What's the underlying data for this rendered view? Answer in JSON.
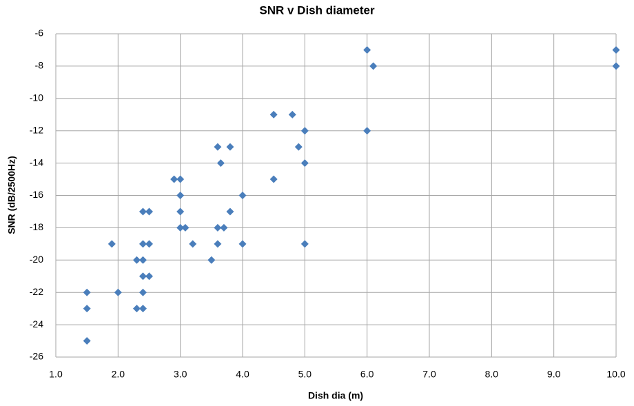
{
  "chart_data": {
    "type": "scatter",
    "title": "SNR v Dish diameter",
    "x_label": "Dish dia (m)",
    "y_label": "SNR (dB/2500Hz)",
    "x": [
      6.0,
      6.1,
      10.0,
      10.0,
      4.5,
      4.8,
      5.0,
      6.0,
      3.6,
      3.8,
      4.9,
      3.65,
      5.0,
      2.9,
      3.0,
      4.5,
      3.0,
      4.0,
      2.4,
      2.5,
      3.0,
      3.8,
      3.0,
      3.08,
      3.6,
      3.7,
      1.9,
      2.4,
      2.5,
      3.2,
      3.6,
      4.0,
      5.0,
      2.3,
      2.4,
      3.5,
      2.4,
      2.5,
      1.5,
      2.0,
      2.4,
      1.5,
      2.3,
      2.4,
      1.5
    ],
    "values": [
      -7,
      -8,
      -7,
      -8,
      -11,
      -11,
      -12,
      -12,
      -13,
      -13,
      -13,
      -14,
      -14,
      -15,
      -15,
      -15,
      -16,
      -16,
      -17,
      -17,
      -17,
      -17,
      -18,
      -18,
      -18,
      -18,
      -19,
      -19,
      -19,
      -19,
      -19,
      -19,
      -19,
      -20,
      -20,
      -20,
      -21,
      -21,
      -22,
      -22,
      -22,
      -23,
      -23,
      -23,
      -25
    ],
    "color": "#4a7ebb",
    "xlim": [
      1,
      10
    ],
    "xticks": [
      {
        "value": 1,
        "label": "1.0"
      },
      {
        "value": 2,
        "label": "2.0"
      },
      {
        "value": 3,
        "label": "3.0"
      },
      {
        "value": 4,
        "label": "4.0"
      },
      {
        "value": 5,
        "label": "5.0"
      },
      {
        "value": 6,
        "label": "6.0"
      },
      {
        "value": 7,
        "label": "7.0"
      },
      {
        "value": 8,
        "label": "8.0"
      },
      {
        "value": 9,
        "label": "9.0"
      },
      {
        "value": 10,
        "label": "10.0"
      }
    ],
    "ylim": [
      -26,
      -6
    ],
    "yticks": [
      -6,
      -8,
      -10,
      -12,
      -14,
      -16,
      -18,
      -20,
      -22,
      -24,
      -26
    ],
    "grid": true
  }
}
